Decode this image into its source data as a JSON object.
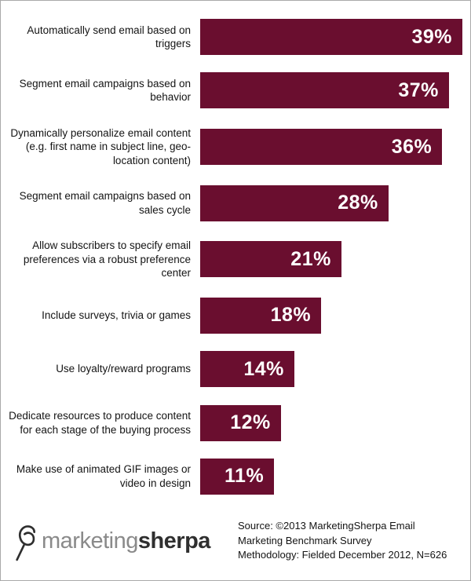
{
  "chart_data": {
    "type": "bar",
    "orientation": "horizontal",
    "categories": [
      "Automatically send email based on triggers",
      "Segment email campaigns based on behavior",
      "Dynamically personalize email content (e.g.  first name in subject line, geo-location content)",
      "Segment email campaigns based on sales cycle",
      "Allow subscribers to specify email preferences via a robust preference center",
      "Include surveys, trivia or games",
      "Use loyalty/reward programs",
      "Dedicate resources to produce content for each stage of the buying process",
      "Make use of animated GIF images or video in design"
    ],
    "values": [
      39,
      37,
      36,
      28,
      21,
      18,
      14,
      12,
      11
    ],
    "value_suffix": "%",
    "xlim": [
      0,
      39
    ],
    "title": "",
    "xlabel": "",
    "ylabel": "",
    "grid": false,
    "legend": false,
    "bar_color": "#6a0e2f",
    "value_label_color": "#ffffff"
  },
  "footer": {
    "logo": {
      "part1": "marketing",
      "part2": "sherpa"
    },
    "source_lines": [
      "Source: ©2013 MarketingSherpa Email",
      "Marketing Benchmark Survey",
      "Methodology: Fielded  December 2012, N=626"
    ]
  }
}
